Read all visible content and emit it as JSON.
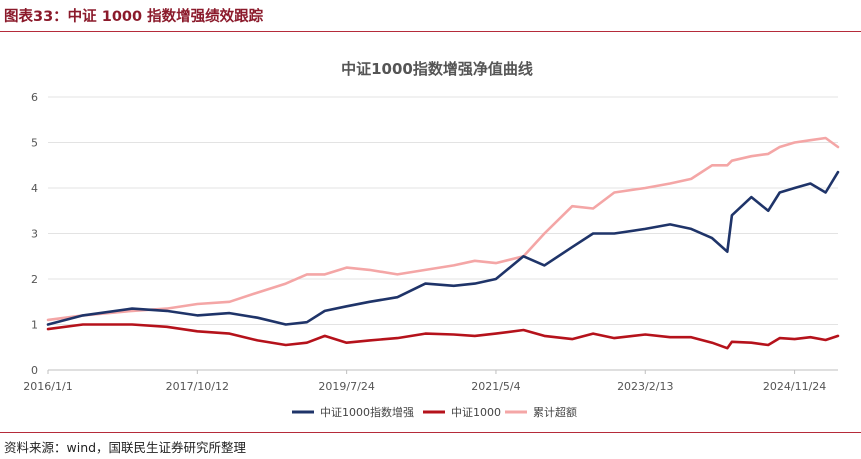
{
  "figure": {
    "label": "图表33：中证 1000 指数增强绩效跟踪",
    "source": "资料来源：wind，国联民生证券研究所整理"
  },
  "colors": {
    "accent": "#8b1a2b",
    "rule": "#b52b3a",
    "enhanced": "#1f3469",
    "index": "#b5121b",
    "excess": "#f4a6a6"
  },
  "chart_data": {
    "type": "line",
    "title": "中证1000指数增强净值曲线",
    "xlabel": "",
    "ylabel": "",
    "ylim": [
      0,
      6
    ],
    "yticks": [
      "0",
      "1",
      "2",
      "3",
      "4",
      "5",
      "6"
    ],
    "xticks": [
      "2016/1/1",
      "2017/10/12",
      "2019/7/24",
      "2021/5/4",
      "2023/2/13",
      "2024/11/24"
    ],
    "x": [
      "2016/1/1",
      "2016/6/1",
      "2017/1/1",
      "2017/6/1",
      "2017/10/12",
      "2018/3/1",
      "2018/7/1",
      "2018/11/1",
      "2019/2/1",
      "2019/4/20",
      "2019/7/24",
      "2019/11/1",
      "2020/3/1",
      "2020/7/1",
      "2020/11/1",
      "2021/2/1",
      "2021/5/4",
      "2021/9/1",
      "2021/12/1",
      "2022/4/1",
      "2022/7/1",
      "2022/10/1",
      "2023/2/13",
      "2023/6/1",
      "2023/9/1",
      "2023/12/1",
      "2024/2/5",
      "2024/2/25",
      "2024/5/20",
      "2024/8/1",
      "2024/9/20",
      "2024/11/24",
      "2025/2/1",
      "2025/4/8",
      "2025/6/1"
    ],
    "grid": true,
    "legend_position": "bottom",
    "series": [
      {
        "name": "中证1000指数增强",
        "color": "#1f3469",
        "values": [
          1.0,
          1.2,
          1.35,
          1.3,
          1.2,
          1.25,
          1.15,
          1.0,
          1.05,
          1.3,
          1.4,
          1.5,
          1.6,
          1.9,
          1.85,
          1.9,
          2.0,
          2.5,
          2.3,
          2.7,
          3.0,
          3.0,
          3.1,
          3.2,
          3.1,
          2.9,
          2.6,
          3.4,
          3.8,
          3.5,
          3.9,
          4.0,
          4.1,
          3.9,
          4.35
        ]
      },
      {
        "name": "中证1000",
        "color": "#b5121b",
        "values": [
          0.9,
          1.0,
          1.0,
          0.95,
          0.85,
          0.8,
          0.65,
          0.55,
          0.6,
          0.75,
          0.6,
          0.65,
          0.7,
          0.8,
          0.78,
          0.75,
          0.8,
          0.88,
          0.75,
          0.68,
          0.8,
          0.7,
          0.78,
          0.72,
          0.72,
          0.6,
          0.48,
          0.62,
          0.6,
          0.55,
          0.7,
          0.68,
          0.72,
          0.66,
          0.75
        ]
      },
      {
        "name": "累计超额",
        "color": "#f4a6a6",
        "values": [
          1.1,
          1.2,
          1.3,
          1.35,
          1.45,
          1.5,
          1.7,
          1.9,
          2.1,
          2.1,
          2.25,
          2.2,
          2.1,
          2.2,
          2.3,
          2.4,
          2.35,
          2.5,
          3.0,
          3.6,
          3.55,
          3.9,
          4.0,
          4.1,
          4.2,
          4.5,
          4.5,
          4.6,
          4.7,
          4.75,
          4.9,
          5.0,
          5.05,
          5.1,
          4.9
        ]
      }
    ]
  }
}
